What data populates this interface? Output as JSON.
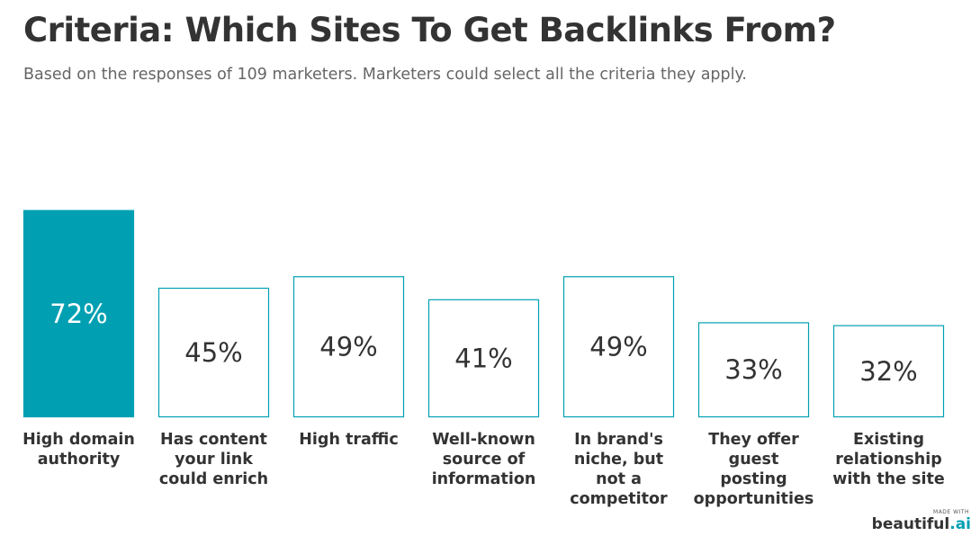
{
  "chart_data": {
    "type": "bar",
    "title": "Criteria: Which Sites To Get Backlinks From?",
    "subtitle": "Based on the responses of 109 marketers. Marketers could select all the criteria they apply.",
    "categories": [
      "High domain authority",
      "Has content your link could enrich",
      "High traffic",
      "Well-known source of information",
      "In brand's niche, but not a competitor",
      "They offer guest posting opportunities",
      "Existing relationship with the site"
    ],
    "values": [
      72,
      45,
      49,
      41,
      49,
      33,
      32
    ],
    "value_labels": [
      "72%",
      "45%",
      "49%",
      "41%",
      "49%",
      "33%",
      "32%"
    ],
    "color": "#00a0b2",
    "highlight": 0
  },
  "watermark": {
    "made_with": "MADE WITH",
    "brand": "beautiful",
    "brand_suffix": ".ai"
  }
}
